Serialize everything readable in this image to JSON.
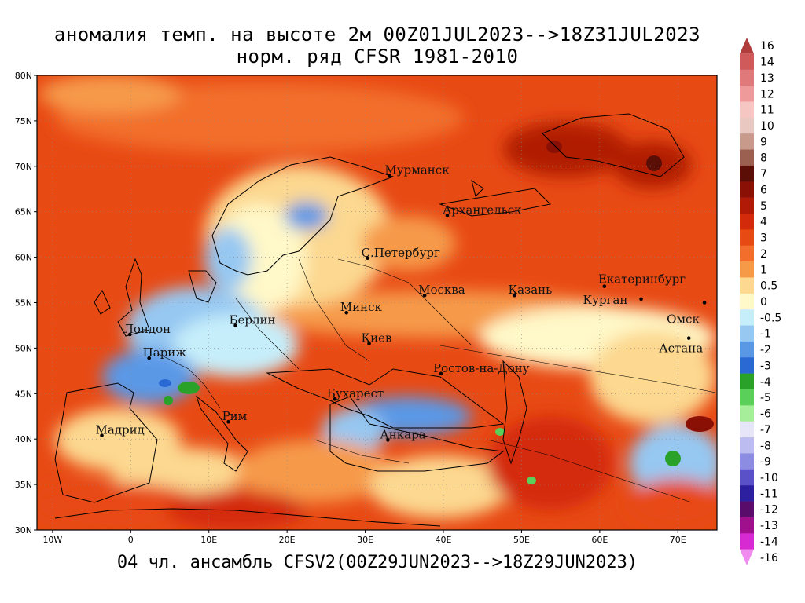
{
  "title_line1": "аномалия темп. на высоте 2м 00Z01JUL2023-->18Z31JUL2023",
  "title_line2": "норм. ряд CFSR 1981-2010",
  "footer": "04 чл. ансамбль CFSV2(00Z29JUN2023-->18Z29JUN2023)",
  "map": {
    "lon_range": [
      -12,
      75
    ],
    "lat_range": [
      30,
      80
    ],
    "lat_ticks": [
      {
        "value": 30,
        "label": "30N"
      },
      {
        "value": 35,
        "label": "35N"
      },
      {
        "value": 40,
        "label": "40N"
      },
      {
        "value": 45,
        "label": "45N"
      },
      {
        "value": 50,
        "label": "50N"
      },
      {
        "value": 55,
        "label": "55N"
      },
      {
        "value": 60,
        "label": "60N"
      },
      {
        "value": 65,
        "label": "65N"
      },
      {
        "value": 70,
        "label": "70N"
      },
      {
        "value": 75,
        "label": "75N"
      },
      {
        "value": 80,
        "label": "80N"
      }
    ],
    "lon_ticks": [
      {
        "value": -10,
        "label": "10W"
      },
      {
        "value": 0,
        "label": "0"
      },
      {
        "value": 10,
        "label": "10E"
      },
      {
        "value": 20,
        "label": "20E"
      },
      {
        "value": 30,
        "label": "30E"
      },
      {
        "value": 40,
        "label": "40E"
      },
      {
        "value": 50,
        "label": "50E"
      },
      {
        "value": 60,
        "label": "60E"
      },
      {
        "value": 70,
        "label": "70E"
      }
    ],
    "cities": [
      {
        "name": "Мурманск",
        "lon": 33.1,
        "lat": 69.0,
        "dx": -6,
        "dy": -2
      },
      {
        "name": "Архангельск",
        "lon": 40.5,
        "lat": 64.6,
        "dx": -6,
        "dy": -2
      },
      {
        "name": "С.Петербург",
        "lon": 30.3,
        "lat": 59.9,
        "dx": -8,
        "dy": -2
      },
      {
        "name": "Москва",
        "lon": 37.6,
        "lat": 55.8,
        "dx": -8,
        "dy": -2
      },
      {
        "name": "Казань",
        "lon": 49.1,
        "lat": 55.8,
        "dx": -8,
        "dy": -2
      },
      {
        "name": "Екатеринбург",
        "lon": 60.6,
        "lat": 56.8,
        "dx": -8,
        "dy": -4
      },
      {
        "name": "Курган",
        "lon": 65.3,
        "lat": 55.4,
        "dx": -74,
        "dy": 6
      },
      {
        "name": "Омск",
        "lon": 73.4,
        "lat": 55.0,
        "dx": -48,
        "dy": 26
      },
      {
        "name": "Астана",
        "lon": 71.4,
        "lat": 51.1,
        "dx": -38,
        "dy": 18
      },
      {
        "name": "Минск",
        "lon": 27.6,
        "lat": 53.9,
        "dx": -8,
        "dy": -2
      },
      {
        "name": "Киев",
        "lon": 30.5,
        "lat": 50.5,
        "dx": -10,
        "dy": -2
      },
      {
        "name": "Ростов-на-Дону",
        "lon": 39.7,
        "lat": 47.2,
        "dx": -10,
        "dy": -2
      },
      {
        "name": "Берлин",
        "lon": 13.4,
        "lat": 52.5,
        "dx": -8,
        "dy": -2
      },
      {
        "name": "Лондон",
        "lon": -0.1,
        "lat": 51.5,
        "dx": -8,
        "dy": -2
      },
      {
        "name": "Париж",
        "lon": 2.35,
        "lat": 48.9,
        "dx": -8,
        "dy": -2
      },
      {
        "name": "Бухарест",
        "lon": 26.1,
        "lat": 44.4,
        "dx": -10,
        "dy": -2
      },
      {
        "name": "Рим",
        "lon": 12.5,
        "lat": 41.9,
        "dx": -8,
        "dy": -2
      },
      {
        "name": "Мадрид",
        "lon": -3.7,
        "lat": 40.4,
        "dx": -8,
        "dy": -2
      },
      {
        "name": "Анкара",
        "lon": 32.9,
        "lat": 39.9,
        "dx": -10,
        "dy": -2
      }
    ]
  },
  "legend": [
    {
      "label": "16",
      "color": "#b03c3c"
    },
    {
      "label": "14",
      "color": "#d05a5a"
    },
    {
      "label": "13",
      "color": "#e07a7a"
    },
    {
      "label": "12",
      "color": "#ee9a9a"
    },
    {
      "label": "11",
      "color": "#f6c6c2"
    },
    {
      "label": "10",
      "color": "#e8c8c0"
    },
    {
      "label": "9",
      "color": "#c79a8c"
    },
    {
      "label": "8",
      "color": "#9c6050"
    },
    {
      "label": "7",
      "color": "#5a0e06"
    },
    {
      "label": "6",
      "color": "#8a1006"
    },
    {
      "label": "5",
      "color": "#b01a06"
    },
    {
      "label": "4",
      "color": "#d42a0c"
    },
    {
      "label": "3",
      "color": "#e84a14"
    },
    {
      "label": "2",
      "color": "#f26e2a"
    },
    {
      "label": "1",
      "color": "#f69a48"
    },
    {
      "label": "0.5",
      "color": "#fcd890"
    },
    {
      "label": "0",
      "color": "#fff8c8"
    },
    {
      "label": "-0.5",
      "color": "#c6eefa"
    },
    {
      "label": "-1",
      "color": "#96c8f2"
    },
    {
      "label": "-2",
      "color": "#5a98e6"
    },
    {
      "label": "-3",
      "color": "#2a68d4"
    },
    {
      "label": "-4",
      "color": "#2aa22a"
    },
    {
      "label": "-5",
      "color": "#5ad05a"
    },
    {
      "label": "-6",
      "color": "#a6ee9a"
    },
    {
      "label": "-7",
      "color": "#e6e6f8"
    },
    {
      "label": "-8",
      "color": "#bcbcf0"
    },
    {
      "label": "-9",
      "color": "#8c8ce2"
    },
    {
      "label": "-10",
      "color": "#5a50c8"
    },
    {
      "label": "-11",
      "color": "#2c20a0"
    },
    {
      "label": "-12",
      "color": "#5a0c6a"
    },
    {
      "label": "-13",
      "color": "#a0108c"
    },
    {
      "label": "-14",
      "color": "#d82ad2"
    },
    {
      "label": "-16",
      "color": "#f08cf0"
    }
  ]
}
